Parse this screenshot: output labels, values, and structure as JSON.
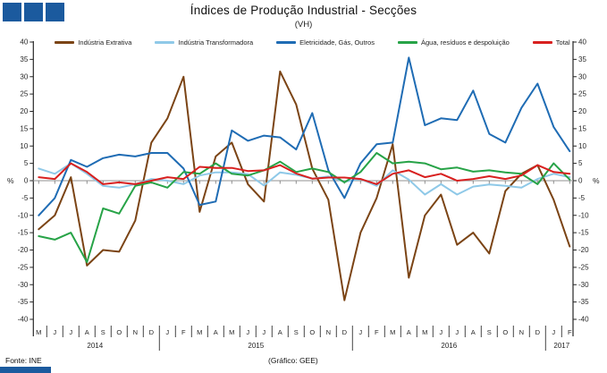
{
  "header": {
    "title": "Índices de Produção Industrial - Secções",
    "subtitle": "(VH)",
    "accent_color": "#1b5a9e"
  },
  "footer": {
    "source": "Fonte: INE",
    "credit": "(Gráfico: GEE)"
  },
  "axis": {
    "unit_left": "%",
    "unit_right": "%"
  },
  "chart_data": {
    "type": "line",
    "title": "Índices de Produção Industrial - Secções",
    "subtitle": "(VH)",
    "ylabel": "%",
    "ylim": [
      -40,
      40
    ],
    "ytick_step": 5,
    "grid": "zero-line-only",
    "legend_position": "top",
    "x_month_labels": [
      "M",
      "J",
      "J",
      "A",
      "S",
      "O",
      "N",
      "D",
      "J",
      "F",
      "M",
      "A",
      "M",
      "J",
      "J",
      "A",
      "S",
      "O",
      "N",
      "D",
      "J",
      "F",
      "M",
      "A",
      "M",
      "J",
      "J",
      "A",
      "S",
      "O",
      "N",
      "D",
      "J",
      "F"
    ],
    "year_groups": [
      {
        "label": "2014",
        "span": 8
      },
      {
        "label": "2015",
        "span": 12
      },
      {
        "label": "2016",
        "span": 12
      },
      {
        "label": "2017",
        "span": 2
      }
    ],
    "series": [
      {
        "name": "Indústria Extrativa",
        "color": "#7b4415",
        "values": [
          -14,
          -10,
          1,
          -24.5,
          -20,
          -20.5,
          -11.5,
          11,
          18,
          30,
          -9,
          7,
          11,
          -1,
          -6,
          31.5,
          22,
          3.5,
          -5.5,
          -34.5,
          -15,
          -5,
          10.5,
          -28,
          -10,
          -4,
          -18.5,
          -15,
          -21,
          -3,
          2,
          4.5,
          -5.5,
          -19
        ]
      },
      {
        "name": "Indústria Transformadora",
        "color": "#8fc9e8",
        "values": [
          3.5,
          2,
          5,
          2,
          -1.5,
          -2,
          -1,
          0.5,
          0,
          -1,
          1.5,
          2.4,
          2.4,
          1.9,
          -1.4,
          2.4,
          1.7,
          0.6,
          1.2,
          -0.3,
          0.5,
          -1.5,
          3,
          0.3,
          -4,
          -1,
          -4,
          -1.7,
          -1.1,
          -1.5,
          -2,
          0.5,
          2,
          1
        ]
      },
      {
        "name": "Eletricidade, Gás, Outros",
        "color": "#1f6cb4",
        "values": [
          -10,
          -5,
          6,
          4,
          6.5,
          7.5,
          7,
          8,
          8,
          3.5,
          -7,
          -6,
          14.5,
          11.5,
          13,
          12.5,
          9,
          19.5,
          3,
          -5,
          5,
          10.5,
          11,
          35.5,
          16,
          18,
          17.5,
          26,
          13.5,
          11,
          21,
          28,
          15.5,
          8.5
        ]
      },
      {
        "name": "Água, resíduos e despoluição",
        "color": "#27a347",
        "values": [
          -16,
          -17,
          -15,
          -23.5,
          -8,
          -9.5,
          -1.5,
          -0.5,
          -2,
          2.5,
          2,
          5,
          2,
          1.5,
          3,
          5.5,
          2.5,
          3.5,
          2.5,
          -0.5,
          2.5,
          8,
          5,
          5.5,
          5,
          3.3,
          3.8,
          2.6,
          3,
          2.4,
          2,
          -1,
          5,
          0.3
        ]
      },
      {
        "name": "Total",
        "color": "#d8201f",
        "values": [
          1,
          0.5,
          5,
          2.5,
          -1,
          -0.5,
          -1,
          0,
          1,
          0.5,
          4,
          3.7,
          3.7,
          2.8,
          3,
          4.5,
          2.1,
          0.6,
          0.9,
          0.9,
          0.5,
          -1,
          2,
          3,
          1,
          2,
          0,
          0.5,
          1.3,
          0.5,
          1.5,
          4.5,
          2.5,
          2
        ]
      }
    ]
  }
}
